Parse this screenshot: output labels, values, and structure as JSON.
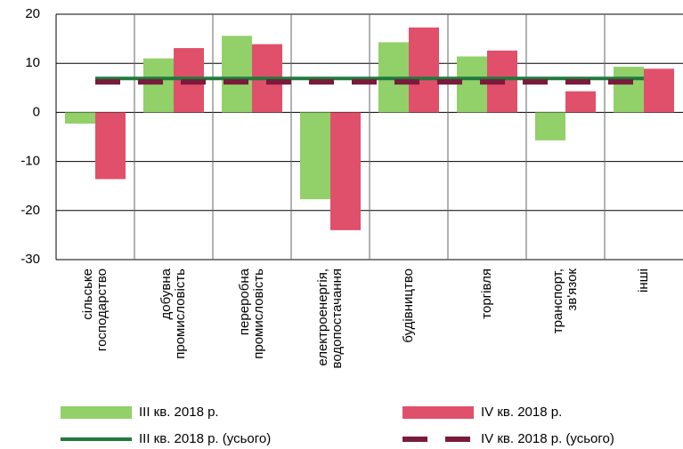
{
  "chart_data": {
    "type": "bar",
    "categories": [
      [
        "сільське",
        "господарство"
      ],
      [
        "добувна",
        "промисловість"
      ],
      [
        "переробна",
        "промисловість"
      ],
      [
        "електроенергія,",
        "водопостачання"
      ],
      [
        "будівництво"
      ],
      [
        "торгівля"
      ],
      [
        "транспорт,",
        "зв'язок"
      ],
      [
        "інші"
      ]
    ],
    "series": [
      {
        "name": "III кв. 2018 р.",
        "color": "#92d06a",
        "values": [
          -2.3,
          11,
          15.6,
          -17.7,
          14.3,
          11.4,
          -5.7,
          9.3
        ]
      },
      {
        "name": "IV  кв. 2018 р.",
        "color": "#e0506a",
        "values": [
          -13.6,
          13.1,
          13.9,
          -24,
          17.3,
          12.6,
          4.3,
          8.9
        ]
      }
    ],
    "lines": [
      {
        "name": "III кв. 2018 р. (усього)",
        "color": "#1f7a3c",
        "value": 6.9,
        "dashed": false
      },
      {
        "name": "IV кв. 2018 р. (усього)",
        "color": "#7a1a3c",
        "value": 6.2,
        "dashed": true
      }
    ],
    "ylim": [
      -30,
      20
    ],
    "yticks": [
      -30,
      -20,
      -10,
      0,
      10,
      20
    ],
    "grid": true
  }
}
